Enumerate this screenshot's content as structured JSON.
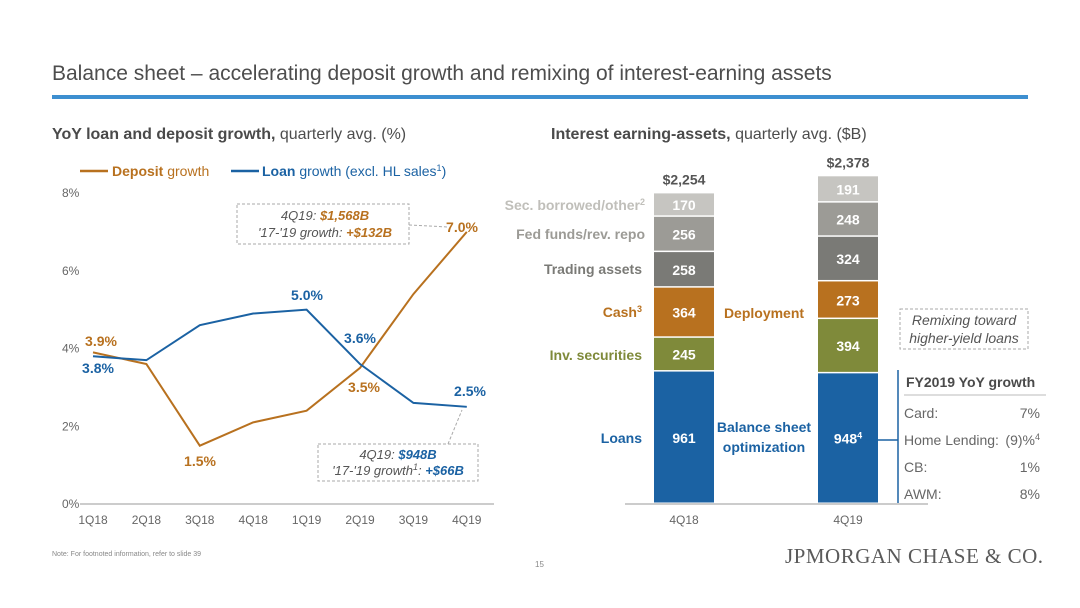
{
  "slide": {
    "title": "Balance sheet – accelerating deposit growth and remixing of interest-earning assets",
    "footnote": "Note: For footnoted information, refer to slide 39",
    "page_number": "15",
    "logo_text": "JPMORGAN CHASE & CO."
  },
  "left_header": {
    "bold": "YoY loan and deposit growth,",
    "normal": " quarterly avg. (%)"
  },
  "right_header": {
    "bold": "Interest earning-assets,",
    "normal": " quarterly avg. ($B)"
  },
  "colors": {
    "deposit": "#b8711f",
    "loan": "#1b62a3",
    "loans_seg": "#1b62a3",
    "inv_seg": "#7f8a3a",
    "cash_seg": "#b8711f",
    "trading_seg": "#7a7a76",
    "fed_seg": "#9c9b96",
    "sec_seg": "#c6c5c1",
    "accent": "#3d8fd0"
  },
  "chart_data": [
    {
      "type": "line",
      "categories": [
        "1Q18",
        "2Q18",
        "3Q18",
        "4Q18",
        "1Q19",
        "2Q19",
        "3Q19",
        "4Q19"
      ],
      "ylim": [
        0,
        8
      ],
      "yticks": [
        "0%",
        "2%",
        "4%",
        "6%",
        "8%"
      ],
      "series": [
        {
          "name": "Deposit growth",
          "legend_bold": "Deposit",
          "legend_rest": " growth",
          "values": [
            3.9,
            3.6,
            1.5,
            2.1,
            2.4,
            3.5,
            5.4,
            7.0
          ]
        },
        {
          "name": "Loan growth (excl. HL sales1)",
          "legend_bold": "Loan",
          "legend_rest": " growth (excl. HL sales",
          "legend_sup": "1",
          "legend_end": ")",
          "values": [
            3.8,
            3.7,
            4.6,
            4.9,
            5.0,
            3.6,
            2.6,
            2.5
          ]
        }
      ],
      "data_labels": {
        "deposit": [
          "3.9%",
          "1.5%",
          "3.5%",
          "7.0%"
        ],
        "loan": [
          "3.8%",
          "5.0%",
          "3.6%",
          "2.5%"
        ]
      },
      "callouts": [
        {
          "line1_italic": "4Q19:",
          "line1_bold": " $1,568B",
          "line2_italic": "'17-'19 growth:",
          "line2_bold": " +$132B"
        },
        {
          "line1_italic": "4Q19:",
          "line1_bold": " $948B",
          "line2_italic": "'17-'19 growth",
          "line2_sup": "1",
          "line2_colon": ":",
          "line2_bold": " +$66B"
        }
      ]
    },
    {
      "type": "bar",
      "stacked": true,
      "categories": [
        "4Q18",
        "4Q19"
      ],
      "totals": [
        "$2,254",
        "$2,378"
      ],
      "series": [
        {
          "name": "Loans",
          "values": [
            961,
            948
          ],
          "labels": [
            "961",
            "948"
          ]
        },
        {
          "name": "Inv. securities",
          "values": [
            245,
            394
          ],
          "labels": [
            "245",
            "394"
          ]
        },
        {
          "name": "Cash3",
          "values": [
            364,
            273
          ],
          "labels": [
            "364",
            "273"
          ]
        },
        {
          "name": "Trading assets",
          "values": [
            258,
            324
          ],
          "labels": [
            "258",
            "324"
          ]
        },
        {
          "name": "Fed funds/rev. repo",
          "values": [
            256,
            248
          ],
          "labels": [
            "256",
            "248"
          ]
        },
        {
          "name": "Sec. borrowed/other2",
          "values": [
            170,
            191
          ],
          "labels": [
            "170",
            "191"
          ]
        }
      ],
      "series_labels": {
        "loans": "Loans",
        "inv": "Inv. securities",
        "cash": "Cash",
        "cash_sup": "3",
        "trading": "Trading assets",
        "fed": "Fed funds/rev. repo",
        "sec": "Sec. borrowed/other",
        "sec_sup": "2"
      },
      "bar_label_sup": "4",
      "annotations": {
        "deployment": "Deployment",
        "bso_line1": "Balance sheet",
        "bso_line2": "optimization",
        "remix_line1": "Remixing toward",
        "remix_line2": "higher-yield loans"
      }
    }
  ],
  "growth_table": {
    "title": "FY2019 YoY growth",
    "rows": [
      {
        "label": "Card:",
        "value": "7%"
      },
      {
        "label": "Home Lending:",
        "value": "(9)%",
        "sup": "4"
      },
      {
        "label": "CB:",
        "value": "1%"
      },
      {
        "label": "AWM:",
        "value": "8%"
      }
    ]
  }
}
